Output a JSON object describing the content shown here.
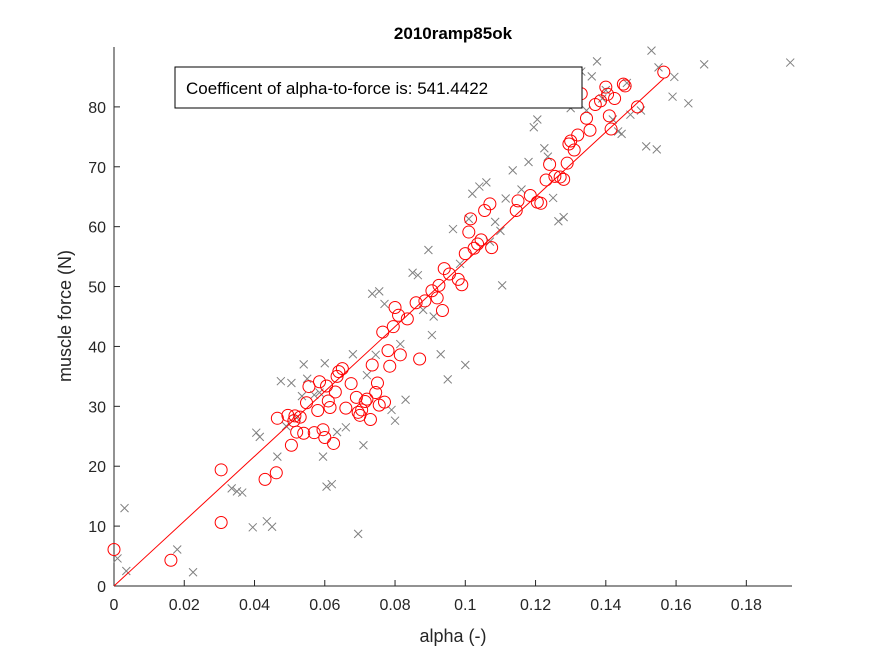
{
  "chart_data": {
    "type": "scatter",
    "title": "2010ramp85ok",
    "xlabel": "alpha (-)",
    "ylabel": "muscle force (N)",
    "xlim": [
      0,
      0.193
    ],
    "ylim": [
      0,
      90
    ],
    "xticks": [
      0,
      0.02,
      0.04,
      0.06,
      0.08,
      0.1,
      0.12,
      0.14,
      0.16,
      0.18
    ],
    "xtick_labels": [
      "0",
      "0.02",
      "0.04",
      "0.06",
      "0.08",
      "0.1",
      "0.12",
      "0.14",
      "0.16",
      "0.18"
    ],
    "yticks": [
      0,
      10,
      20,
      30,
      40,
      50,
      60,
      70,
      80
    ],
    "ytick_labels": [
      "0",
      "10",
      "20",
      "30",
      "40",
      "50",
      "60",
      "70",
      "80"
    ],
    "grid": false,
    "annotation": "Coefficent of alpha-to-force is: 541.4422",
    "colors": {
      "crosses": "#808080",
      "circles": "#ff0000",
      "fit": "#ff0000"
    },
    "fit_line": {
      "slope": 541.4422,
      "x": [
        0,
        0.1565
      ]
    },
    "circles": [
      [
        0.0,
        6.1
      ],
      [
        0.0162,
        4.3
      ],
      [
        0.0305,
        19.4
      ],
      [
        0.0305,
        10.6
      ],
      [
        0.043,
        17.8
      ],
      [
        0.0462,
        18.9
      ],
      [
        0.0465,
        28.0
      ],
      [
        0.0495,
        28.5
      ],
      [
        0.0505,
        23.5
      ],
      [
        0.0512,
        27.6
      ],
      [
        0.0515,
        28.4
      ],
      [
        0.052,
        25.7
      ],
      [
        0.053,
        28.2
      ],
      [
        0.054,
        25.5
      ],
      [
        0.0548,
        30.6
      ],
      [
        0.0555,
        33.3
      ],
      [
        0.057,
        25.6
      ],
      [
        0.058,
        29.3
      ],
      [
        0.0585,
        34.1
      ],
      [
        0.0595,
        26.1
      ],
      [
        0.06,
        24.8
      ],
      [
        0.0605,
        33.4
      ],
      [
        0.061,
        30.9
      ],
      [
        0.0615,
        29.8
      ],
      [
        0.0625,
        23.8
      ],
      [
        0.063,
        32.4
      ],
      [
        0.0635,
        35.0
      ],
      [
        0.064,
        35.8
      ],
      [
        0.065,
        36.3
      ],
      [
        0.066,
        29.7
      ],
      [
        0.0675,
        33.8
      ],
      [
        0.069,
        31.5
      ],
      [
        0.0695,
        29.0
      ],
      [
        0.07,
        28.5
      ],
      [
        0.0705,
        29.4
      ],
      [
        0.0715,
        30.8
      ],
      [
        0.072,
        31.2
      ],
      [
        0.073,
        27.8
      ],
      [
        0.0735,
        36.9
      ],
      [
        0.0745,
        32.3
      ],
      [
        0.075,
        33.9
      ],
      [
        0.0755,
        30.2
      ],
      [
        0.0765,
        42.4
      ],
      [
        0.077,
        30.7
      ],
      [
        0.078,
        39.3
      ],
      [
        0.0785,
        36.7
      ],
      [
        0.0795,
        43.3
      ],
      [
        0.08,
        46.5
      ],
      [
        0.081,
        45.2
      ],
      [
        0.0815,
        38.6
      ],
      [
        0.0835,
        44.6
      ],
      [
        0.086,
        47.3
      ],
      [
        0.087,
        37.9
      ],
      [
        0.0885,
        47.6
      ],
      [
        0.0905,
        49.3
      ],
      [
        0.092,
        48.1
      ],
      [
        0.0925,
        50.2
      ],
      [
        0.0935,
        46.0
      ],
      [
        0.094,
        53.0
      ],
      [
        0.0955,
        52.1
      ],
      [
        0.098,
        51.2
      ],
      [
        0.099,
        50.3
      ],
      [
        0.1,
        55.5
      ],
      [
        0.101,
        59.1
      ],
      [
        0.1015,
        61.3
      ],
      [
        0.1025,
        56.4
      ],
      [
        0.1035,
        57.1
      ],
      [
        0.1045,
        57.8
      ],
      [
        0.1055,
        62.7
      ],
      [
        0.107,
        63.8
      ],
      [
        0.1075,
        56.5
      ],
      [
        0.1145,
        62.7
      ],
      [
        0.115,
        64.3
      ],
      [
        0.1185,
        65.2
      ],
      [
        0.1205,
        64.1
      ],
      [
        0.1215,
        63.9
      ],
      [
        0.123,
        67.8
      ],
      [
        0.124,
        70.4
      ],
      [
        0.1255,
        68.4
      ],
      [
        0.127,
        68.3
      ],
      [
        0.128,
        67.9
      ],
      [
        0.129,
        70.6
      ],
      [
        0.1295,
        73.8
      ],
      [
        0.13,
        74.3
      ],
      [
        0.131,
        72.8
      ],
      [
        0.132,
        75.3
      ],
      [
        0.133,
        82.2
      ],
      [
        0.1345,
        78.1
      ],
      [
        0.1355,
        76.1
      ],
      [
        0.137,
        80.4
      ],
      [
        0.1385,
        81.0
      ],
      [
        0.14,
        83.3
      ],
      [
        0.1405,
        82.1
      ],
      [
        0.141,
        78.5
      ],
      [
        0.1415,
        76.3
      ],
      [
        0.1425,
        81.4
      ],
      [
        0.145,
        83.8
      ],
      [
        0.1455,
        83.5
      ],
      [
        0.149,
        80.0
      ],
      [
        0.1565,
        85.8
      ]
    ],
    "crosses": [
      [
        0.001,
        4.6
      ],
      [
        0.003,
        13.0
      ],
      [
        0.0035,
        2.5
      ],
      [
        0.018,
        6.1
      ],
      [
        0.0225,
        2.3
      ],
      [
        0.0335,
        16.3
      ],
      [
        0.035,
        15.8
      ],
      [
        0.0365,
        15.6
      ],
      [
        0.0395,
        9.8
      ],
      [
        0.0405,
        25.6
      ],
      [
        0.0415,
        24.9
      ],
      [
        0.0435,
        10.8
      ],
      [
        0.045,
        9.9
      ],
      [
        0.0465,
        21.6
      ],
      [
        0.0475,
        34.2
      ],
      [
        0.049,
        26.7
      ],
      [
        0.0505,
        33.9
      ],
      [
        0.052,
        28.1
      ],
      [
        0.0535,
        31.7
      ],
      [
        0.054,
        37.0
      ],
      [
        0.055,
        34.6
      ],
      [
        0.057,
        31.9
      ],
      [
        0.0585,
        32.3
      ],
      [
        0.0595,
        21.6
      ],
      [
        0.06,
        37.2
      ],
      [
        0.0605,
        16.6
      ],
      [
        0.062,
        17.0
      ],
      [
        0.0635,
        25.7
      ],
      [
        0.066,
        26.5
      ],
      [
        0.068,
        38.7
      ],
      [
        0.0695,
        8.7
      ],
      [
        0.071,
        23.5
      ],
      [
        0.072,
        35.2
      ],
      [
        0.0735,
        48.8
      ],
      [
        0.0745,
        38.6
      ],
      [
        0.0755,
        49.2
      ],
      [
        0.077,
        47.1
      ],
      [
        0.079,
        29.4
      ],
      [
        0.08,
        27.6
      ],
      [
        0.0815,
        40.4
      ],
      [
        0.083,
        31.1
      ],
      [
        0.085,
        52.3
      ],
      [
        0.0865,
        51.9
      ],
      [
        0.088,
        46.1
      ],
      [
        0.0895,
        56.1
      ],
      [
        0.0905,
        41.9
      ],
      [
        0.091,
        45.0
      ],
      [
        0.093,
        38.7
      ],
      [
        0.095,
        34.5
      ],
      [
        0.0965,
        59.6
      ],
      [
        0.0985,
        53.8
      ],
      [
        0.1,
        36.9
      ],
      [
        0.101,
        61.3
      ],
      [
        0.102,
        65.5
      ],
      [
        0.104,
        66.7
      ],
      [
        0.106,
        67.4
      ],
      [
        0.107,
        57.5
      ],
      [
        0.1085,
        60.8
      ],
      [
        0.11,
        59.3
      ],
      [
        0.1105,
        50.2
      ],
      [
        0.1115,
        64.7
      ],
      [
        0.1135,
        69.4
      ],
      [
        0.116,
        66.2
      ],
      [
        0.118,
        70.8
      ],
      [
        0.1195,
        76.6
      ],
      [
        0.1205,
        77.9
      ],
      [
        0.1225,
        73.1
      ],
      [
        0.1235,
        71.7
      ],
      [
        0.125,
        64.8
      ],
      [
        0.1265,
        60.9
      ],
      [
        0.128,
        61.6
      ],
      [
        0.13,
        79.8
      ],
      [
        0.133,
        85.9
      ],
      [
        0.1345,
        79.4
      ],
      [
        0.136,
        85.1
      ],
      [
        0.1375,
        87.6
      ],
      [
        0.139,
        81.4
      ],
      [
        0.14,
        82.8
      ],
      [
        0.142,
        77.9
      ],
      [
        0.1435,
        75.9
      ],
      [
        0.1445,
        75.5
      ],
      [
        0.146,
        84.0
      ],
      [
        0.147,
        78.7
      ],
      [
        0.15,
        79.4
      ],
      [
        0.1515,
        73.4
      ],
      [
        0.153,
        89.4
      ],
      [
        0.1545,
        72.9
      ],
      [
        0.155,
        86.6
      ],
      [
        0.159,
        81.7
      ],
      [
        0.1595,
        85.0
      ],
      [
        0.1635,
        80.6
      ],
      [
        0.168,
        87.1
      ],
      [
        0.1925,
        87.4
      ]
    ]
  }
}
